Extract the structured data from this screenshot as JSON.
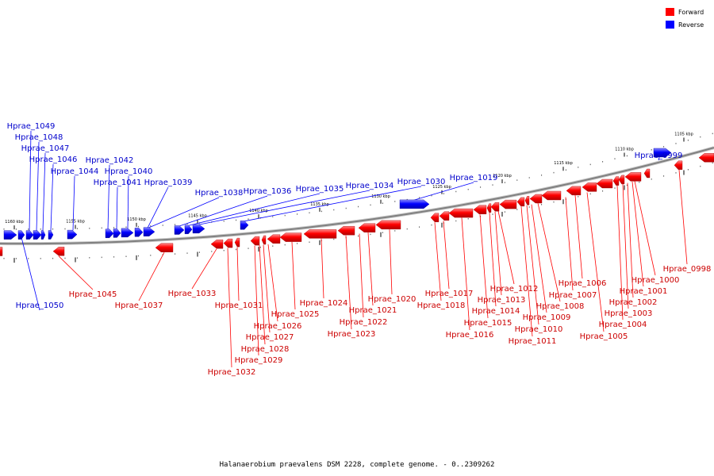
{
  "caption": "Halanaerobium praevalens DSM 2228, complete genome. - 0..2309262",
  "legend": [
    {
      "label": "Forward",
      "color": "#ff0000"
    },
    {
      "label": "Reverse",
      "color": "#0000ff"
    }
  ],
  "colors": {
    "forward": "#ff0000",
    "reverse": "#0000ff",
    "backbone": "#808080",
    "forward_label": "#cc0000",
    "reverse_label": "#0000cc"
  },
  "ticks": [
    "1160 kbp",
    "1155 kbp",
    "1150 kbp",
    "1145 kbp",
    "1140 kbp",
    "1135 kbp",
    "1130 kbp",
    "1125 kbp",
    "1120 kbp",
    "1115 kbp",
    "1110 kbp",
    "1105 kbp"
  ],
  "genes_reverse": [
    "Hprae_1050",
    "Hprae_1049",
    "Hprae_1048",
    "Hprae_1047",
    "Hprae_1046",
    "Hprae_1044",
    "Hprae_1042",
    "Hprae_1041",
    "Hprae_1040",
    "Hprae_1039",
    "Hprae_1038",
    "Hprae_1036",
    "Hprae_1035",
    "Hprae_1034",
    "Hprae_1030",
    "Hprae_1019",
    "Hprae_0999"
  ],
  "genes_forward": [
    "Hprae_1045",
    "Hprae_1037",
    "Hprae_1033",
    "Hprae_1032",
    "Hprae_1031",
    "Hprae_1029",
    "Hprae_1028",
    "Hprae_1027",
    "Hprae_1026",
    "Hprae_1025",
    "Hprae_1024",
    "Hprae_1023",
    "Hprae_1022",
    "Hprae_1021",
    "Hprae_1020",
    "Hprae_1018",
    "Hprae_1017",
    "Hprae_1016",
    "Hprae_1015",
    "Hprae_1014",
    "Hprae_1013",
    "Hprae_1012",
    "Hprae_1011",
    "Hprae_1010",
    "Hprae_1009",
    "Hprae_1008",
    "Hprae_1007",
    "Hprae_1006",
    "Hprae_1005",
    "Hprae_1004",
    "Hprae_1003",
    "Hprae_1002",
    "Hprae_1001",
    "Hprae_1000",
    "Hprae_0998"
  ]
}
